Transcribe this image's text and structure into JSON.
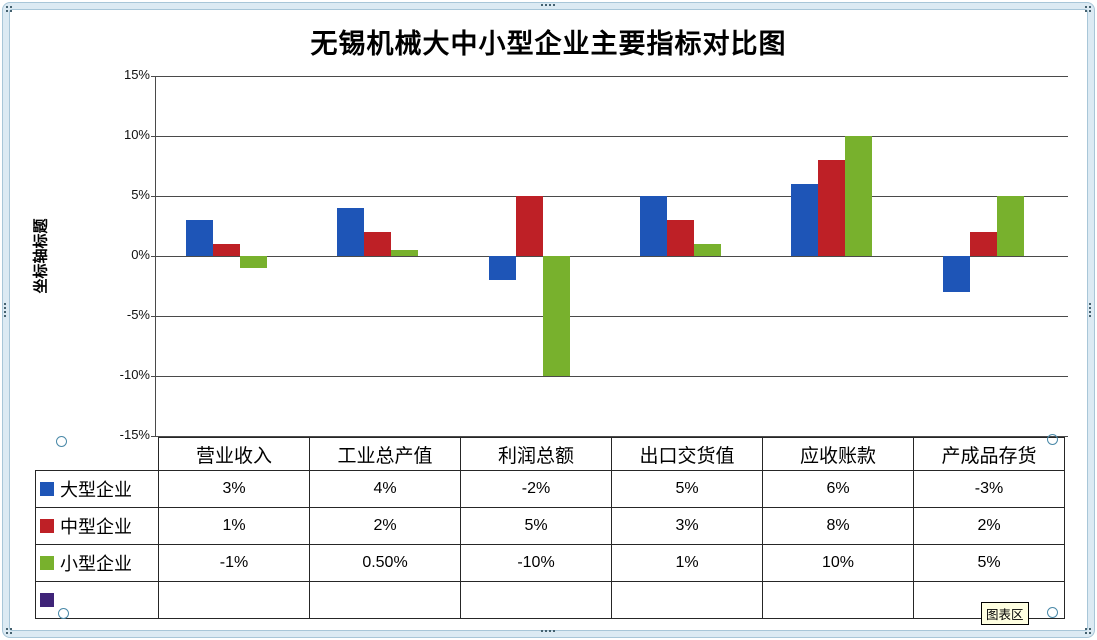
{
  "tooltip": {
    "label": "图表区"
  },
  "colors": {
    "frame_band": "#DCEAF3",
    "grid": "#4A4A4A",
    "tooltip_bg": "#FFFFE1",
    "series_blue": "#1E55B7",
    "series_red": "#BE2026",
    "series_green": "#78B12D",
    "series_purple": "#3F2478"
  },
  "chart_data": {
    "type": "bar",
    "title": "无锡机械大中小型企业主要指标对比图",
    "ylabel": "坐标轴标题",
    "xlabel": "",
    "ylim": [
      -15,
      15
    ],
    "ytick_step": 5,
    "ytick_labels": [
      "15%",
      "10%",
      "5%",
      "0%",
      "-5%",
      "-10%",
      "-15%"
    ],
    "grid": true,
    "legend_position": "data-table-left",
    "categories": [
      "营业收入",
      "工业总产值",
      "利润总额",
      "出口交货值",
      "应收账款",
      "产成品存货"
    ],
    "series": [
      {
        "name": "大型企业",
        "color": "#1E55B7",
        "values": [
          3,
          4,
          -2,
          5,
          6,
          -3
        ],
        "labels": [
          "3%",
          "4%",
          "-2%",
          "5%",
          "6%",
          "-3%"
        ]
      },
      {
        "name": "中型企业",
        "color": "#BE2026",
        "values": [
          1,
          2,
          5,
          3,
          8,
          2
        ],
        "labels": [
          "1%",
          "2%",
          "5%",
          "3%",
          "8%",
          "2%"
        ]
      },
      {
        "name": "小型企业",
        "color": "#78B12D",
        "values": [
          -1,
          0.5,
          -10,
          1,
          10,
          5
        ],
        "labels": [
          "-1%",
          "0.50%",
          "-10%",
          "1%",
          "10%",
          "5%"
        ]
      },
      {
        "name": "",
        "color": "#3F2478",
        "values": [
          null,
          null,
          null,
          null,
          null,
          null
        ],
        "labels": [
          "",
          "",
          "",
          "",
          "",
          ""
        ]
      }
    ]
  }
}
